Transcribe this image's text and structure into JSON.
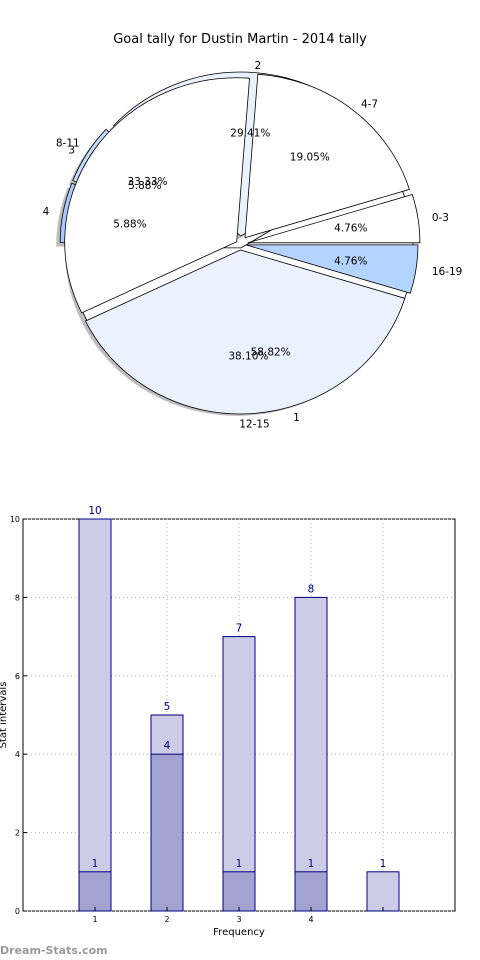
{
  "chart_data": [
    {
      "type": "pie",
      "title": "Goal tally for Dustin Martin - 2014 tally",
      "series": [
        {
          "categories": [
            "0-3",
            "4-7",
            "8-11",
            "12-15",
            "16-19"
          ],
          "values": [
            4.76,
            19.05,
            33.33,
            38.1,
            4.76
          ],
          "labels": [
            "4.76%",
            "19.05%",
            "33.33%",
            "38.10%",
            "4.76%"
          ],
          "colors": [
            "#ffffff",
            "#ffffff",
            "#ffffff",
            "#eaf1ff",
            "#b3d4ff"
          ]
        },
        {
          "categories": [
            "1",
            "2",
            "3",
            "4"
          ],
          "values": [
            58.82,
            29.41,
            5.88,
            5.88
          ],
          "labels": [
            "58.82%",
            "29.41%",
            "5.88%",
            "5.88%"
          ],
          "colors": [
            "#ffffff",
            "#eaf1ff",
            "#c4d8ff",
            "#a9c8ff"
          ]
        }
      ]
    },
    {
      "type": "bar",
      "categories": [
        "1",
        "2",
        "3",
        "4",
        ""
      ],
      "series": [
        {
          "values": [
            10,
            5,
            7,
            8,
            1
          ],
          "labels": [
            "10",
            "5",
            "7",
            "8",
            "1"
          ],
          "color": "#cccce6"
        },
        {
          "values": [
            1,
            4,
            1,
            1,
            null
          ],
          "labels": [
            "1",
            "4",
            "1",
            "1",
            ""
          ],
          "color": "#a3a3d1"
        }
      ],
      "xlabel": "Frequency",
      "ylabel": "Stat intervals",
      "ylim": [
        0,
        10
      ],
      "yticks": [
        "0",
        "2",
        "4",
        "6",
        "8",
        "10"
      ],
      "grid": true
    }
  ],
  "watermark": "Dream-Stats.com"
}
